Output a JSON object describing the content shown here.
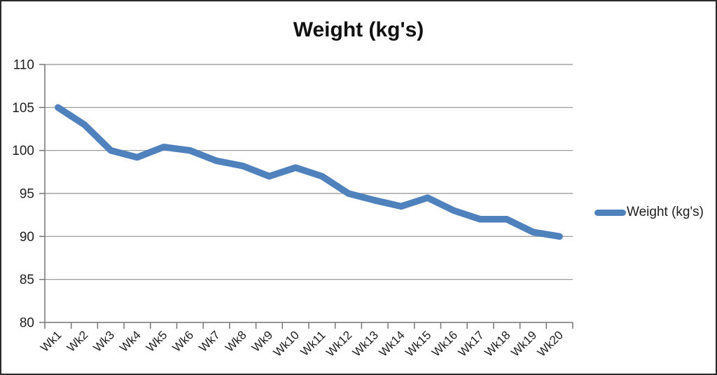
{
  "chart_data": {
    "type": "line",
    "title": "Weight (kg's)",
    "categories": [
      "Wk1",
      "Wk2",
      "Wk3",
      "Wk4",
      "Wk5",
      "Wk6",
      "Wk7",
      "Wk8",
      "Wk9",
      "Wk10",
      "Wk11",
      "Wk12",
      "Wk13",
      "Wk14",
      "Wk15",
      "Wk16",
      "Wk17",
      "Wk18",
      "Wk19",
      "Wk20"
    ],
    "series": [
      {
        "name": "Weight (kg's)",
        "color": "#4F81BD",
        "values": [
          105,
          103,
          100,
          99.2,
          100.4,
          100,
          98.8,
          98.2,
          97,
          98,
          97,
          95,
          94.2,
          93.5,
          94.5,
          93,
          92,
          92,
          90.5,
          90
        ]
      }
    ],
    "xlabel": "",
    "ylabel": "",
    "ylim": [
      80,
      110
    ],
    "yticks": [
      80,
      85,
      90,
      95,
      100,
      105,
      110
    ],
    "ytick_labels": [
      "80",
      "85",
      "90",
      "95",
      "100",
      "105",
      "110"
    ],
    "grid": true,
    "legend_position": "right-middle"
  },
  "colors": {
    "line": "#4F81BD",
    "gridline": "#919191",
    "axis": "#757575",
    "tick_text": "#1f1f1f",
    "title_text": "#111111",
    "chart_border": "#2b2b2b",
    "background": "#ffffff"
  }
}
